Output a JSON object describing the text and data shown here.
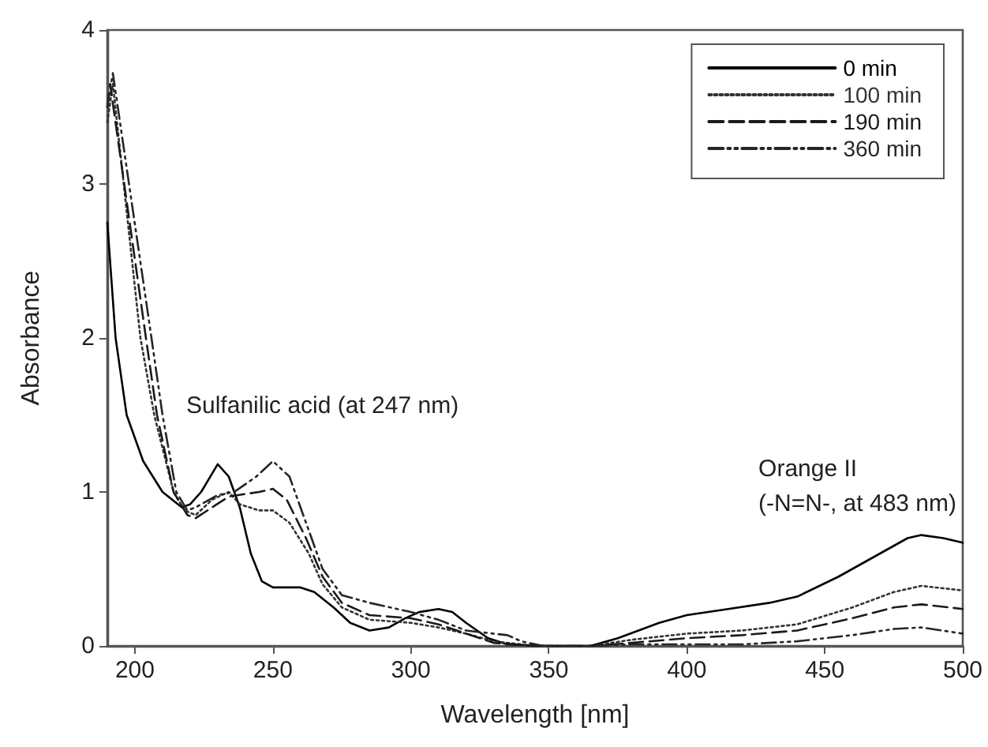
{
  "chart_data": {
    "type": "line",
    "xlabel": "Wavelength [nm]",
    "ylabel": "Absorbance",
    "xlim": [
      190,
      500
    ],
    "xticks": [
      200,
      250,
      300,
      350,
      400,
      450,
      500
    ],
    "ylim": [
      0,
      4
    ],
    "yticks": [
      0,
      1,
      2,
      3,
      4
    ],
    "grid": false,
    "legend": "top right",
    "marker": "none",
    "annotations": [
      "Sulfanilic acid (at 247 nm)",
      "Orange II\n(-N=N-, at 483 nm)"
    ],
    "series": [
      {
        "name": "0 min",
        "color": "#000000",
        "line_style": "solid",
        "x": [
          190,
          193,
          197,
          203,
          210,
          217,
          220,
          224,
          230,
          234,
          238,
          242,
          246,
          250,
          260,
          265,
          272,
          278,
          285,
          292,
          298,
          303,
          310,
          315,
          320,
          328,
          335,
          350,
          365,
          375,
          390,
          400,
          415,
          430,
          440,
          455,
          470,
          480,
          485,
          493,
          500
        ],
        "values": [
          2.75,
          2.0,
          1.5,
          1.2,
          1.0,
          0.9,
          0.92,
          1.0,
          1.18,
          1.1,
          0.9,
          0.6,
          0.42,
          0.38,
          0.38,
          0.35,
          0.25,
          0.15,
          0.1,
          0.12,
          0.18,
          0.22,
          0.24,
          0.22,
          0.15,
          0.05,
          0.01,
          0,
          0,
          0.05,
          0.15,
          0.2,
          0.24,
          0.28,
          0.32,
          0.45,
          0.6,
          0.7,
          0.72,
          0.7,
          0.67
        ]
      },
      {
        "name": "100 min",
        "color": "#333333",
        "line_style": "dotted",
        "x": [
          190,
          192,
          202,
          207,
          214,
          218,
          222,
          228,
          234,
          238,
          245,
          250,
          256,
          263,
          268,
          275,
          285,
          300,
          310,
          320,
          330,
          345,
          365,
          380,
          400,
          420,
          440,
          460,
          475,
          485,
          500
        ],
        "values": [
          3.4,
          3.65,
          2.0,
          1.5,
          1.0,
          0.88,
          0.85,
          0.95,
          1.0,
          0.92,
          0.88,
          0.88,
          0.8,
          0.6,
          0.4,
          0.25,
          0.17,
          0.15,
          0.12,
          0.08,
          0.03,
          0,
          0,
          0.04,
          0.08,
          0.1,
          0.14,
          0.25,
          0.35,
          0.39,
          0.36
        ]
      },
      {
        "name": "190 min",
        "color": "#1a1a1a",
        "line_style": "dashed",
        "x": [
          190,
          191,
          204,
          208,
          214,
          219,
          222,
          228,
          234,
          245,
          250,
          255,
          262,
          268,
          275,
          285,
          300,
          310,
          320,
          330,
          345,
          365,
          380,
          400,
          420,
          440,
          460,
          475,
          485,
          500
        ],
        "values": [
          3.5,
          3.65,
          2.0,
          1.5,
          1.0,
          0.85,
          0.83,
          0.9,
          0.97,
          1.0,
          1.02,
          0.95,
          0.7,
          0.45,
          0.28,
          0.2,
          0.18,
          0.14,
          0.08,
          0.02,
          0,
          0,
          0.02,
          0.05,
          0.07,
          0.1,
          0.18,
          0.25,
          0.27,
          0.24
        ]
      },
      {
        "name": "360 min",
        "color": "#262626",
        "line_style": "dashdotdot",
        "x": [
          190,
          192,
          206,
          210,
          215,
          219,
          222,
          230,
          236,
          244,
          250,
          256,
          262,
          268,
          275,
          285,
          300,
          310,
          320,
          335,
          340,
          348,
          365,
          380,
          420,
          440,
          460,
          475,
          485,
          500
        ],
        "values": [
          3.5,
          3.72,
          2.0,
          1.5,
          1.0,
          0.88,
          0.9,
          0.98,
          1.0,
          1.1,
          1.2,
          1.1,
          0.8,
          0.5,
          0.33,
          0.28,
          0.22,
          0.17,
          0.1,
          0.07,
          0.03,
          0,
          0,
          0.01,
          0.01,
          0.03,
          0.07,
          0.11,
          0.12,
          0.08
        ]
      }
    ]
  }
}
